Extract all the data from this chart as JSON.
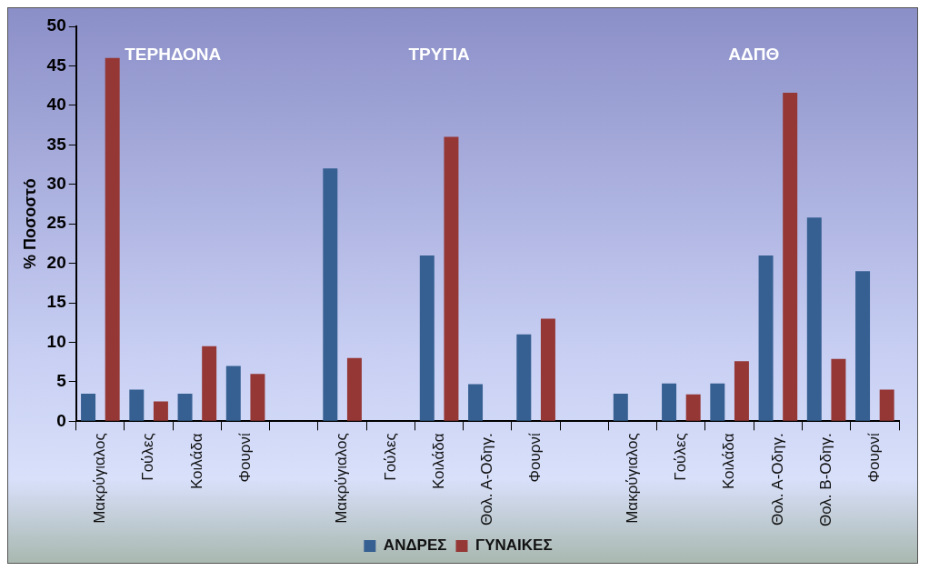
{
  "chart_data": {
    "type": "bar",
    "ylabel": "% Ποσοστό",
    "categories": [
      "Μακρύγιαλος",
      "Γούλες",
      "Κοιλάδα",
      "Φουρνί",
      null,
      "Μακρύγιαλος",
      "Γούλες",
      "Κοιλάδα",
      "Θολ. Α-Οδηγ.",
      "Φουρνί",
      null,
      "Μακρύγιαλος",
      "Γούλες",
      "Κοιλάδα",
      "Θολ. Α-Οδηγ.",
      "Θολ. Β-Οδηγ.",
      "Φουρνί"
    ],
    "series": [
      {
        "name": "ΑΝΔΡΕΣ",
        "color": "#366092",
        "values": [
          3.5,
          4,
          3.5,
          7,
          null,
          32,
          0,
          21,
          4.7,
          11,
          null,
          3.5,
          4.8,
          4.8,
          21,
          25.8,
          19
        ]
      },
      {
        "name": "ΓΥΝΑΙΚΕΣ",
        "color": "#953735",
        "values": [
          46,
          2.5,
          9.5,
          6,
          null,
          8,
          0,
          36,
          0,
          13,
          null,
          0,
          3.4,
          7.6,
          41.6,
          7.9,
          4
        ]
      }
    ],
    "annotations": [
      "ΤΕΡΗΔΟΝΑ",
      "ΤΡΥΓΙΑ",
      "ΑΔΠΘ"
    ],
    "ylim": [
      0,
      50
    ],
    "yticks": [
      0,
      5,
      10,
      15,
      20,
      25,
      30,
      35,
      40,
      45,
      50
    ],
    "grid": false,
    "legend": "bottom"
  }
}
